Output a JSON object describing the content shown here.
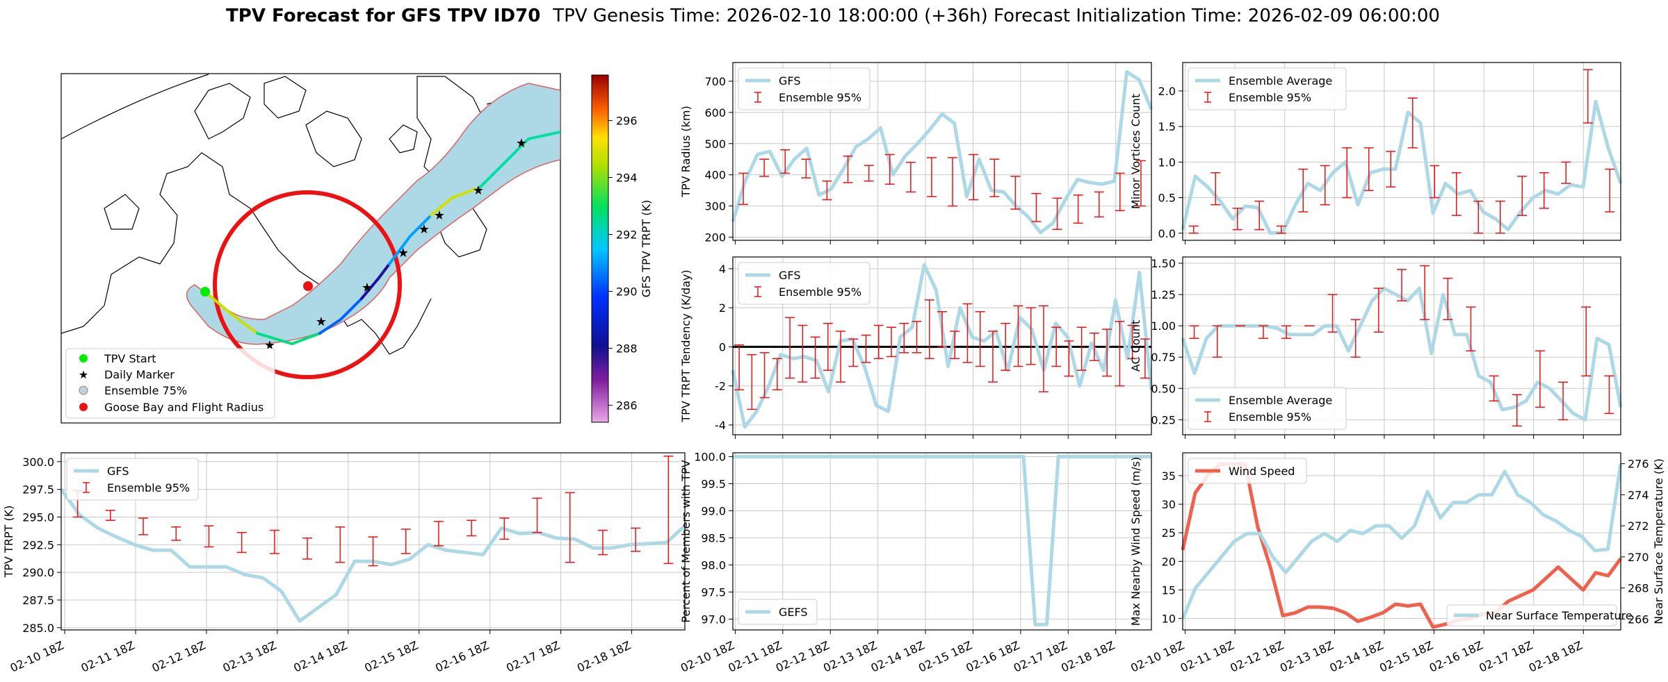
{
  "figure": {
    "title_bold": "TPV Forecast for GFS TPV ID70",
    "title_rest": "TPV Genesis Time: 2026-02-10 18:00:00 (+36h)   Forecast Initialization Time: 2026-02-09 06:00:00"
  },
  "x_tick_labels": [
    "02-10 18Z",
    "02-11 18Z",
    "02-12 18Z",
    "02-13 18Z",
    "02-14 18Z",
    "02-15 18Z",
    "02-16 18Z",
    "02-17 18Z",
    "02-18 18Z"
  ],
  "map_panel": {
    "colorbar_label": "GFS TPV TRPT (K)",
    "colorbar_ticks": [
      "286",
      "288",
      "290",
      "292",
      "294",
      "296"
    ],
    "legend": [
      "TPV Start",
      "Daily Marker",
      "Ensemble 75%",
      "Goose Bay and Flight Radius"
    ],
    "colors": {
      "ensemble_fill": "#add8e6",
      "ensemble_edge": "#e06060",
      "circle": "#ee1111",
      "start": "#00ee00",
      "marker": "#ee22ee"
    }
  },
  "chart_data": [
    {
      "id": "radius",
      "type": "line",
      "ylabel": "TPV Radius (km)",
      "ylim": [
        190,
        760
      ],
      "yticks": [
        200,
        300,
        400,
        500,
        600,
        700
      ],
      "legend": [
        "GFS",
        "Ensemble 95%"
      ],
      "line_values": [
        250,
        380,
        465,
        475,
        395,
        450,
        485,
        335,
        355,
        420,
        490,
        515,
        550,
        400,
        460,
        500,
        545,
        595,
        565,
        330,
        450,
        350,
        345,
        300,
        265,
        215,
        245,
        320,
        385,
        375,
        370,
        380,
        730,
        705,
        610
      ],
      "error_values": [
        [
          305,
          405
        ],
        [
          395,
          450
        ],
        [
          405,
          480
        ],
        [
          390,
          450
        ],
        [
          320,
          380
        ],
        [
          375,
          460
        ],
        [
          380,
          430
        ],
        [
          370,
          465
        ],
        [
          345,
          440
        ],
        [
          330,
          455
        ],
        [
          300,
          455
        ],
        [
          320,
          465
        ],
        [
          330,
          450
        ],
        [
          290,
          395
        ],
        [
          250,
          340
        ],
        [
          225,
          325
        ],
        [
          245,
          335
        ],
        [
          265,
          345
        ],
        [
          285,
          405
        ],
        [
          300,
          445
        ]
      ]
    },
    {
      "id": "tendency",
      "type": "line",
      "ylabel": "TPV TRPT Tendency (K/day)",
      "ylim": [
        -4.5,
        4.6
      ],
      "yticks": [
        -4,
        -2,
        0,
        2,
        4
      ],
      "legend": [
        "GFS",
        "Ensemble 95%"
      ],
      "line_values": [
        -1.2,
        -4.1,
        -3.3,
        -2.0,
        -0.4,
        -0.6,
        -0.5,
        -0.7,
        -2.3,
        0.3,
        0.4,
        -1.0,
        -3.0,
        -3.3,
        0.5,
        1.0,
        4.2,
        2.9,
        -1.0,
        2.0,
        0.5,
        0.3,
        0.8,
        -1.2,
        1.5,
        0.9,
        -1.2,
        1.2,
        0.5,
        -2.0,
        0.2,
        -1.2,
        2.4,
        -0.6,
        3.8,
        -2.2
      ],
      "error_values": [
        [
          -2.2,
          0.1
        ],
        [
          -3.2,
          -0.4
        ],
        [
          -2.6,
          -0.3
        ],
        [
          -2.2,
          -0.6
        ],
        [
          -1.6,
          1.5
        ],
        [
          -1.8,
          1.1
        ],
        [
          -1.6,
          0.5
        ],
        [
          -1.2,
          1.2
        ],
        [
          -1.8,
          0.8
        ],
        [
          -1.0,
          0.4
        ],
        [
          -0.8,
          0.6
        ],
        [
          -0.6,
          1.1
        ],
        [
          -0.5,
          1.0
        ],
        [
          -0.3,
          1.2
        ],
        [
          -0.3,
          1.3
        ],
        [
          -0.6,
          2.4
        ],
        [
          0.0,
          1.8
        ],
        [
          -0.6,
          0.8
        ],
        [
          -0.8,
          2.2
        ],
        [
          -1.0,
          1.8
        ],
        [
          -1.8,
          0.8
        ],
        [
          -1.2,
          1.2
        ],
        [
          -1.0,
          2.1
        ],
        [
          -0.9,
          2.0
        ],
        [
          -2.3,
          2.1
        ],
        [
          -1.0,
          1.0
        ],
        [
          -1.5,
          0.3
        ],
        [
          -1.2,
          1.0
        ],
        [
          -0.7,
          0.7
        ],
        [
          -1.5,
          0.9
        ],
        [
          -2.0,
          1.3
        ],
        [
          -0.6,
          1.1
        ],
        [
          -1.6,
          0.4
        ]
      ]
    },
    {
      "id": "minor",
      "type": "line",
      "ylabel": "Minor Vortices Count",
      "ylim": [
        -0.1,
        2.4
      ],
      "yticks": [
        "0.0",
        "0.5",
        "1.0",
        "1.5",
        "2.0"
      ],
      "legend": [
        "Ensemble Average",
        "Ensemble 95%"
      ],
      "line_values": [
        0.05,
        0.8,
        0.65,
        0.45,
        0.2,
        0.38,
        0.36,
        0.0,
        0.01,
        0.4,
        0.7,
        0.6,
        0.85,
        1.0,
        0.4,
        0.85,
        0.9,
        0.9,
        1.7,
        1.55,
        0.28,
        0.7,
        0.55,
        0.6,
        0.3,
        0.2,
        0.05,
        0.3,
        0.5,
        0.6,
        0.55,
        0.68,
        0.65,
        1.85,
        1.2,
        0.7
      ],
      "error_values": [
        [
          0.0,
          0.1
        ],
        [
          0.4,
          0.85
        ],
        [
          0.05,
          0.35
        ],
        [
          0.05,
          0.45
        ],
        [
          0.0,
          0.1
        ],
        [
          0.3,
          0.9
        ],
        [
          0.4,
          0.95
        ],
        [
          0.5,
          1.2
        ],
        [
          0.6,
          1.2
        ],
        [
          0.65,
          1.15
        ],
        [
          1.2,
          1.9
        ],
        [
          0.5,
          0.95
        ],
        [
          0.25,
          0.85
        ],
        [
          0.0,
          0.45
        ],
        [
          0.0,
          0.45
        ],
        [
          0.25,
          0.8
        ],
        [
          0.35,
          0.85
        ],
        [
          0.7,
          1.0
        ],
        [
          1.55,
          2.3
        ],
        [
          0.3,
          0.9
        ]
      ]
    },
    {
      "id": "ac",
      "type": "line",
      "ylabel": "AC Count",
      "ylim": [
        0.13,
        1.55
      ],
      "yticks": [
        "0.25",
        "0.50",
        "0.75",
        "1.00",
        "1.25",
        "1.50"
      ],
      "legend": [
        "Ensemble Average",
        "Ensemble 95%"
      ],
      "line_values": [
        0.9,
        0.62,
        0.9,
        1.0,
        1.0,
        1.0,
        1.0,
        1.0,
        0.98,
        0.93,
        0.93,
        0.93,
        1.0,
        1.0,
        0.8,
        1.0,
        1.2,
        1.3,
        1.25,
        1.2,
        1.3,
        0.78,
        1.25,
        0.93,
        0.93,
        0.6,
        0.55,
        0.33,
        0.35,
        0.4,
        0.55,
        0.5,
        0.4,
        0.3,
        0.25,
        0.9,
        0.85,
        0.35
      ],
      "error_values": [
        [
          0.9,
          1.0
        ],
        [
          0.75,
          1.0
        ],
        [
          1.0,
          1.0
        ],
        [
          0.9,
          1.0
        ],
        [
          0.9,
          1.0
        ],
        [
          1.0,
          1.0
        ],
        [
          0.95,
          1.25
        ],
        [
          0.75,
          1.05
        ],
        [
          0.95,
          1.3
        ],
        [
          1.2,
          1.45
        ],
        [
          1.05,
          1.48
        ],
        [
          1.05,
          1.38
        ],
        [
          0.8,
          1.15
        ],
        [
          0.4,
          0.6
        ],
        [
          0.2,
          0.45
        ],
        [
          0.35,
          0.8
        ],
        [
          0.25,
          0.55
        ],
        [
          0.6,
          1.15
        ],
        [
          0.3,
          0.6
        ]
      ]
    },
    {
      "id": "trpt",
      "type": "line",
      "ylabel": "TPV TRPT (K)",
      "ylim": [
        284.8,
        300.8
      ],
      "yticks": [
        "285.0",
        "287.5",
        "290.0",
        "292.5",
        "295.0",
        "297.5",
        "300.0"
      ],
      "legend": [
        "GFS",
        "Ensemble 95%"
      ],
      "line_values": [
        297.5,
        295.2,
        294.0,
        293.2,
        292.5,
        292.0,
        292.0,
        290.5,
        290.5,
        290.5,
        289.8,
        289.5,
        288.3,
        285.6,
        286.8,
        288.0,
        291.0,
        291.0,
        290.7,
        291.2,
        292.5,
        292.0,
        291.8,
        291.6,
        294.0,
        293.5,
        293.6,
        293.1,
        293.0,
        292.2,
        292.2,
        292.5,
        292.6,
        292.7,
        294.2
      ],
      "error_values": [
        [
          295.0,
          297.4
        ],
        [
          294.7,
          295.6
        ],
        [
          293.4,
          294.9
        ],
        [
          292.9,
          294.1
        ],
        [
          292.3,
          294.2
        ],
        [
          291.8,
          293.6
        ],
        [
          291.7,
          293.8
        ],
        [
          291.2,
          293.1
        ],
        [
          290.9,
          294.1
        ],
        [
          290.6,
          293.2
        ],
        [
          291.7,
          293.9
        ],
        [
          292.4,
          294.6
        ],
        [
          293.3,
          294.7
        ],
        [
          293.0,
          294.9
        ],
        [
          293.6,
          296.7
        ],
        [
          290.9,
          297.2
        ],
        [
          291.6,
          293.8
        ],
        [
          291.9,
          294.0
        ],
        [
          290.8,
          300.5
        ]
      ]
    },
    {
      "id": "percent",
      "type": "line",
      "ylabel": "Percent of Members with TPV",
      "ylim": [
        96.8,
        100.07
      ],
      "yticks": [
        "97.0",
        "97.5",
        "98.0",
        "98.5",
        "99.0",
        "99.5",
        "100.0"
      ],
      "legend": [
        "GEFS"
      ],
      "line_values": [
        100,
        100,
        100,
        100,
        100,
        100,
        100,
        100,
        100,
        100,
        100,
        100,
        100,
        100,
        100,
        100,
        100,
        100,
        100,
        100,
        100,
        100,
        100,
        100,
        100,
        100,
        96.9,
        96.9,
        100,
        100,
        100,
        100,
        100,
        100,
        100,
        100,
        100
      ]
    },
    {
      "id": "wind",
      "type": "line",
      "ylabel": "Max Nearby Wind Speed (m/s)",
      "ylabel_right": "Near Surface Temperature (K)",
      "ylim": [
        8,
        39
      ],
      "ylim_right": [
        265.3,
        276.7
      ],
      "yticks": [
        10,
        15,
        20,
        25,
        30,
        35
      ],
      "yticks_right": [
        266,
        268,
        270,
        272,
        274,
        276
      ],
      "legend": [
        "Wind Speed"
      ],
      "legend_right": [
        "Near Surface Temperature"
      ],
      "colors": {
        "wind": "#f0604a",
        "temp": "#add8e6",
        "right_axis": "#4169e1"
      },
      "line_values": [
        22,
        32,
        35,
        37,
        37,
        37,
        26,
        19,
        10.5,
        11,
        12,
        12,
        11.8,
        11,
        9.5,
        10.2,
        11,
        12.5,
        12.2,
        12.5,
        8.5,
        9,
        9.7,
        10,
        10.8,
        11,
        13,
        14,
        15,
        17,
        19,
        17,
        15,
        18,
        17.5,
        20.5
      ],
      "line_values_right": [
        266,
        268,
        269,
        270,
        271,
        271.5,
        271.5,
        270,
        269,
        270,
        271,
        271.5,
        271,
        271.7,
        271.5,
        272,
        272,
        271.2,
        272,
        274.2,
        272.5,
        273.5,
        273.5,
        274,
        274,
        275.5,
        274,
        273.5,
        272.7,
        272.3,
        271.7,
        271.3,
        270.4,
        270.5,
        276
      ]
    }
  ]
}
